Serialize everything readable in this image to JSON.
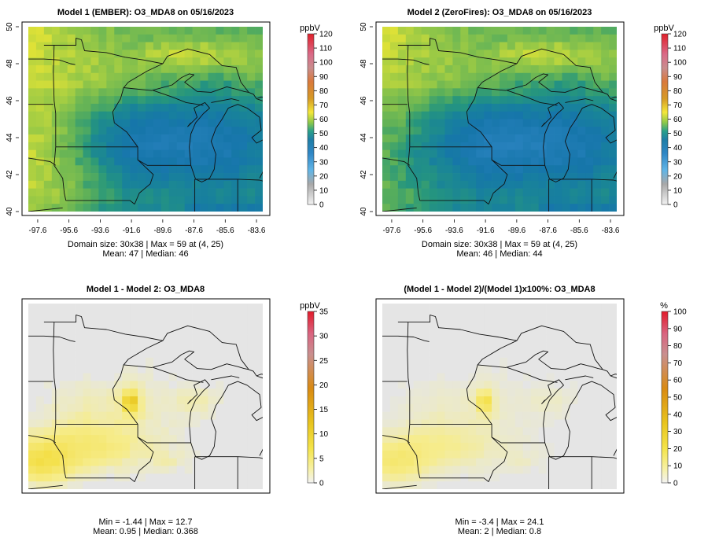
{
  "chart_data": [
    {
      "type": "heatmap",
      "title": "Model 1 (EMBER): O3_MDA8 on 05/16/2023",
      "x_ticks": [
        "-97.6",
        "-95.6",
        "-93.6",
        "-91.6",
        "-89.6",
        "-87.6",
        "-85.6",
        "-83.6"
      ],
      "y_ticks": [
        "40",
        "42",
        "44",
        "46",
        "48",
        "50"
      ],
      "xlim": [
        -98.2,
        -83.2
      ],
      "ylim": [
        40,
        50
      ],
      "legend": {
        "unit": "ppbV",
        "min": 0,
        "max": 120,
        "ticks": [
          "120",
          "110",
          "100",
          "90",
          "80",
          "70",
          "60",
          "50",
          "40",
          "30",
          "20",
          "10",
          "0"
        ]
      },
      "stats_line1": "Domain size: 30x38 | Max = 59 at (4, 25)",
      "stats_line2": "Mean: 47 |  Median: 46",
      "field": "o3_ember"
    },
    {
      "type": "heatmap",
      "title": "Model 2 (ZeroFires): O3_MDA8 on 05/16/2023",
      "x_ticks": [
        "-97.6",
        "-95.6",
        "-93.6",
        "-91.6",
        "-89.6",
        "-87.6",
        "-85.6",
        "-83.6"
      ],
      "y_ticks": [
        "40",
        "42",
        "44",
        "46",
        "48",
        "50"
      ],
      "xlim": [
        -98.2,
        -83.2
      ],
      "ylim": [
        40,
        50
      ],
      "legend": {
        "unit": "ppbV",
        "min": 0,
        "max": 120,
        "ticks": [
          "120",
          "110",
          "100",
          "90",
          "80",
          "70",
          "60",
          "50",
          "40",
          "30",
          "20",
          "10",
          "0"
        ]
      },
      "stats_line1": "Domain size: 30x38 | Max = 59 at (4, 25)",
      "stats_line2": "Mean: 46 |  Median: 44",
      "field": "o3_zero"
    },
    {
      "type": "heatmap",
      "title": "Model 1 - Model 2: O3_MDA8",
      "legend": {
        "unit": "ppbV",
        "min": 0,
        "max": 35,
        "ticks": [
          "35",
          "30",
          "25",
          "20",
          "15",
          "10",
          "5",
          "0"
        ]
      },
      "stats_line1": "Min = -1.44 | Max = 12.7",
      "stats_line2": "Mean: 0.95 |  Median: 0.368",
      "field": "diff"
    },
    {
      "type": "heatmap",
      "title": "(Model 1 - Model 2)/(Model 1)x100%: O3_MDA8",
      "legend": {
        "unit": "%",
        "min": 0,
        "max": 100,
        "ticks": [
          "100",
          "90",
          "80",
          "70",
          "60",
          "50",
          "40",
          "30",
          "20",
          "10",
          "0"
        ]
      },
      "stats_line1": "Min = -3.4 | Max = 24.1",
      "stats_line2": "Mean: 2 |  Median: 0.8",
      "field": "pct"
    }
  ]
}
